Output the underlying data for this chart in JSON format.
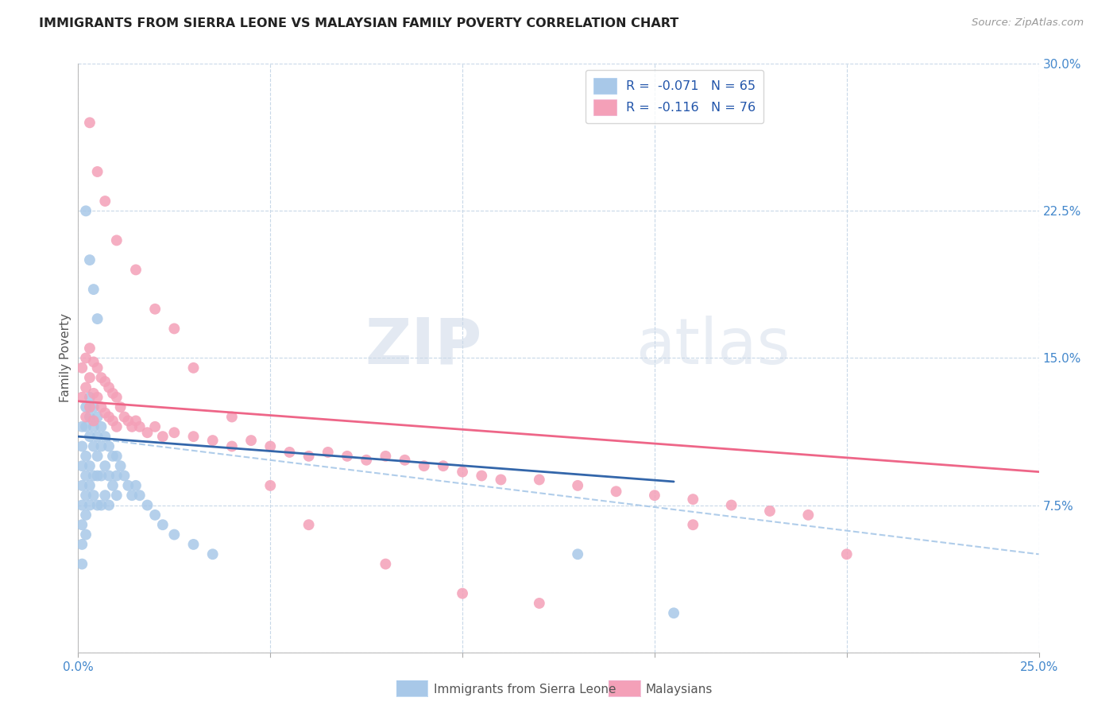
{
  "title": "IMMIGRANTS FROM SIERRA LEONE VS MALAYSIAN FAMILY POVERTY CORRELATION CHART",
  "source": "Source: ZipAtlas.com",
  "ylabel": "Family Poverty",
  "x_min": 0.0,
  "x_max": 0.25,
  "y_min": 0.0,
  "y_max": 0.3,
  "x_ticks": [
    0.0,
    0.05,
    0.1,
    0.15,
    0.2,
    0.25
  ],
  "y_ticks": [
    0.0,
    0.075,
    0.15,
    0.225,
    0.3
  ],
  "color_sierra": "#a8c8e8",
  "color_malaysian": "#f4a0b8",
  "line_color_sierra": "#3366aa",
  "line_color_malaysian": "#ee6688",
  "line_color_dashed": "#a8c8e8",
  "watermark_zip": "ZIP",
  "watermark_atlas": "atlas",
  "sierra_leone_x": [
    0.001,
    0.001,
    0.001,
    0.001,
    0.001,
    0.001,
    0.001,
    0.001,
    0.002,
    0.002,
    0.002,
    0.002,
    0.002,
    0.002,
    0.002,
    0.003,
    0.003,
    0.003,
    0.003,
    0.003,
    0.003,
    0.004,
    0.004,
    0.004,
    0.004,
    0.004,
    0.005,
    0.005,
    0.005,
    0.005,
    0.005,
    0.006,
    0.006,
    0.006,
    0.006,
    0.007,
    0.007,
    0.007,
    0.008,
    0.008,
    0.008,
    0.009,
    0.009,
    0.01,
    0.01,
    0.01,
    0.011,
    0.012,
    0.013,
    0.014,
    0.015,
    0.016,
    0.018,
    0.02,
    0.022,
    0.025,
    0.03,
    0.035,
    0.002,
    0.003,
    0.004,
    0.005,
    0.13,
    0.155
  ],
  "sierra_leone_y": [
    0.115,
    0.105,
    0.095,
    0.085,
    0.075,
    0.065,
    0.055,
    0.045,
    0.125,
    0.115,
    0.1,
    0.09,
    0.08,
    0.07,
    0.06,
    0.13,
    0.12,
    0.11,
    0.095,
    0.085,
    0.075,
    0.125,
    0.115,
    0.105,
    0.09,
    0.08,
    0.12,
    0.11,
    0.1,
    0.09,
    0.075,
    0.115,
    0.105,
    0.09,
    0.075,
    0.11,
    0.095,
    0.08,
    0.105,
    0.09,
    0.075,
    0.1,
    0.085,
    0.1,
    0.09,
    0.08,
    0.095,
    0.09,
    0.085,
    0.08,
    0.085,
    0.08,
    0.075,
    0.07,
    0.065,
    0.06,
    0.055,
    0.05,
    0.225,
    0.2,
    0.185,
    0.17,
    0.05,
    0.02
  ],
  "malaysian_x": [
    0.001,
    0.001,
    0.002,
    0.002,
    0.002,
    0.003,
    0.003,
    0.003,
    0.004,
    0.004,
    0.004,
    0.005,
    0.005,
    0.006,
    0.006,
    0.007,
    0.007,
    0.008,
    0.008,
    0.009,
    0.009,
    0.01,
    0.01,
    0.011,
    0.012,
    0.013,
    0.014,
    0.015,
    0.016,
    0.018,
    0.02,
    0.022,
    0.025,
    0.03,
    0.035,
    0.04,
    0.045,
    0.05,
    0.055,
    0.06,
    0.065,
    0.07,
    0.075,
    0.08,
    0.085,
    0.09,
    0.095,
    0.1,
    0.105,
    0.11,
    0.12,
    0.13,
    0.14,
    0.15,
    0.16,
    0.17,
    0.18,
    0.19,
    0.003,
    0.005,
    0.007,
    0.01,
    0.015,
    0.02,
    0.025,
    0.03,
    0.04,
    0.05,
    0.06,
    0.08,
    0.1,
    0.12,
    0.16,
    0.2
  ],
  "malaysian_y": [
    0.145,
    0.13,
    0.15,
    0.135,
    0.12,
    0.155,
    0.14,
    0.125,
    0.148,
    0.132,
    0.118,
    0.145,
    0.13,
    0.14,
    0.125,
    0.138,
    0.122,
    0.135,
    0.12,
    0.132,
    0.118,
    0.13,
    0.115,
    0.125,
    0.12,
    0.118,
    0.115,
    0.118,
    0.115,
    0.112,
    0.115,
    0.11,
    0.112,
    0.11,
    0.108,
    0.105,
    0.108,
    0.105,
    0.102,
    0.1,
    0.102,
    0.1,
    0.098,
    0.1,
    0.098,
    0.095,
    0.095,
    0.092,
    0.09,
    0.088,
    0.088,
    0.085,
    0.082,
    0.08,
    0.078,
    0.075,
    0.072,
    0.07,
    0.27,
    0.245,
    0.23,
    0.21,
    0.195,
    0.175,
    0.165,
    0.145,
    0.12,
    0.085,
    0.065,
    0.045,
    0.03,
    0.025,
    0.065,
    0.05
  ],
  "sl_line_x_start": 0.0,
  "sl_line_x_solid_end": 0.155,
  "sl_line_x_end": 0.25,
  "ml_line_x_start": 0.0,
  "ml_line_x_end": 0.25,
  "sl_line_y_start": 0.11,
  "sl_line_y_solid_end": 0.087,
  "sl_line_y_end": 0.05,
  "ml_line_y_start": 0.128,
  "ml_line_y_end": 0.092
}
